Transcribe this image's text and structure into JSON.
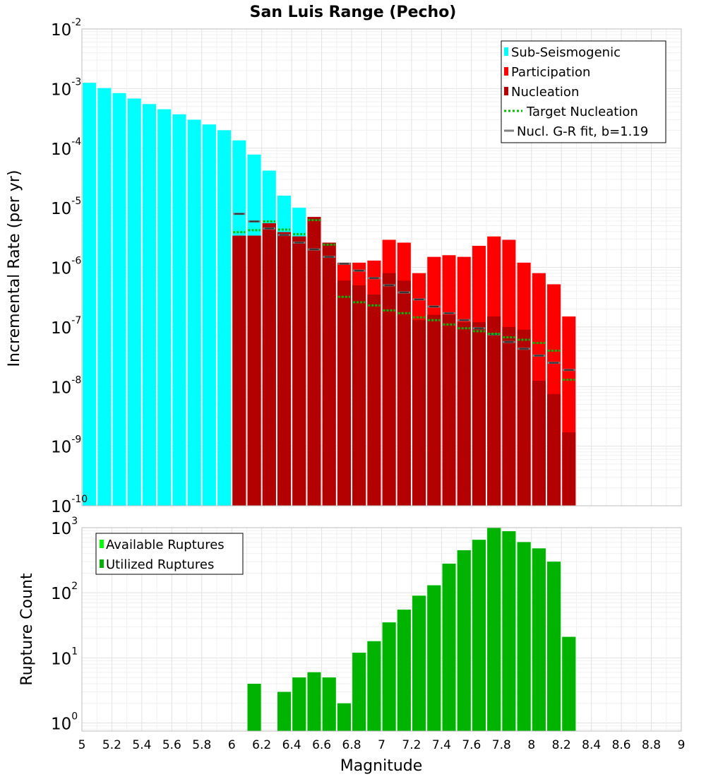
{
  "chart_data": [
    {
      "type": "bar",
      "title": "San Luis Range (Pecho)",
      "ylabel": "Incremental Rate (per yr)",
      "xlabel": "",
      "xlim": [
        5,
        9
      ],
      "ylim": [
        1e-10,
        0.01
      ],
      "yscale": "log",
      "grid": true,
      "legend_position": "top-right",
      "x": [
        5.05,
        5.15,
        5.25,
        5.35,
        5.45,
        5.55,
        5.65,
        5.75,
        5.85,
        5.95,
        6.05,
        6.15,
        6.25,
        6.35,
        6.45,
        6.55,
        6.65,
        6.75,
        6.85,
        6.95,
        7.05,
        7.15,
        7.25,
        7.35,
        7.45,
        7.55,
        7.65,
        7.75,
        7.85,
        7.95,
        8.05,
        8.15,
        8.25
      ],
      "y_ticks": [
        {
          "label": "10",
          "exp": "-10",
          "value": 1e-10
        },
        {
          "label": "10",
          "exp": "-9",
          "value": 1e-09
        },
        {
          "label": "10",
          "exp": "-8",
          "value": 1e-08
        },
        {
          "label": "10",
          "exp": "-7",
          "value": 1e-07
        },
        {
          "label": "10",
          "exp": "-6",
          "value": 1e-06
        },
        {
          "label": "10",
          "exp": "-5",
          "value": 1e-05
        },
        {
          "label": "10",
          "exp": "-4",
          "value": 0.0001
        },
        {
          "label": "10",
          "exp": "-3",
          "value": 0.001
        },
        {
          "label": "10",
          "exp": "-2",
          "value": 0.01
        }
      ],
      "series": [
        {
          "name": "Sub-Seismogenic",
          "kind": "bar",
          "color": "#00ffff",
          "values": [
            0.00125,
            0.00102,
            0.00084,
            0.00068,
            0.00055,
            0.00045,
            0.00037,
            0.0003,
            0.00025,
            0.0002,
            0.000135,
            7.8e-05,
            4.2e-05,
            1.6e-05,
            1e-05,
            null,
            null,
            null,
            null,
            null,
            null,
            null,
            null,
            null,
            null,
            null,
            null,
            null,
            null,
            null,
            null,
            null,
            null
          ]
        },
        {
          "name": "Participation",
          "kind": "bar",
          "color": "#ff0000",
          "values": [
            null,
            null,
            null,
            null,
            null,
            null,
            null,
            null,
            null,
            null,
            3.4e-06,
            3.4e-06,
            5.5e-06,
            3.9e-06,
            3.3e-06,
            7e-06,
            2.6e-06,
            1.2e-06,
            1.2e-06,
            1.3e-06,
            2.9e-06,
            2.6e-06,
            8e-07,
            1.5e-06,
            1.6e-06,
            1.5e-06,
            2.3e-06,
            3.3e-06,
            2.9e-06,
            1.2e-06,
            8e-07,
            5.2e-07,
            1.5e-07
          ]
        },
        {
          "name": "Nucleation",
          "kind": "bar",
          "color": "#b30000",
          "values": [
            null,
            null,
            null,
            null,
            null,
            null,
            null,
            null,
            null,
            null,
            3.4e-06,
            3.4e-06,
            5.5e-06,
            3.9e-06,
            3.3e-06,
            7e-06,
            2.6e-06,
            6e-07,
            5e-07,
            3.5e-07,
            8e-07,
            6e-07,
            1.3e-07,
            1.6e-07,
            1.6e-07,
            1.2e-07,
            1.2e-07,
            1.5e-07,
            1e-07,
            9e-08,
            1.25e-08,
            7.5e-09,
            1.7e-09
          ]
        },
        {
          "name": "Target Nucleation",
          "kind": "dotted-segment",
          "color": "#00bb00",
          "values": [
            null,
            null,
            null,
            null,
            null,
            null,
            null,
            null,
            null,
            null,
            3.9e-06,
            4.2e-06,
            5.9e-06,
            4.3e-06,
            3.6e-06,
            6.2e-06,
            2.4e-06,
            3.2e-07,
            2.6e-07,
            2.3e-07,
            1.9e-07,
            1.7e-07,
            1.45e-07,
            1.3e-07,
            1.1e-07,
            9.5e-08,
            8.5e-08,
            7.7e-08,
            6.7e-08,
            6.1e-08,
            5.4e-08,
            4e-08,
            1.3e-08
          ]
        },
        {
          "name": "Nucl. G-R fit, b=1.19",
          "kind": "segment",
          "color": "#808080",
          "values": [
            null,
            null,
            null,
            null,
            null,
            null,
            null,
            null,
            null,
            null,
            7.9e-06,
            5.9e-06,
            4.5e-06,
            3.5e-06,
            2.6e-06,
            2e-06,
            1.5e-06,
            1.15e-06,
            8.8e-07,
            6.6e-07,
            5e-07,
            3.8e-07,
            2.9e-07,
            2.2e-07,
            1.7e-07,
            1.3e-07,
            9.5e-08,
            7.5e-08,
            5.6e-08,
            4.3e-08,
            3.3e-08,
            2.5e-08,
            1.9e-08
          ]
        }
      ]
    },
    {
      "type": "bar",
      "title": "",
      "ylabel": "Rupture Count",
      "xlabel": "Magnitude",
      "xlim": [
        5,
        9
      ],
      "ylim": [
        0.75,
        1000
      ],
      "yscale": "log",
      "grid": true,
      "legend_position": "top-left",
      "x": [
        5.05,
        5.15,
        5.25,
        5.35,
        5.45,
        5.55,
        5.65,
        5.75,
        5.85,
        5.95,
        6.05,
        6.15,
        6.25,
        6.35,
        6.45,
        6.55,
        6.65,
        6.75,
        6.85,
        6.95,
        7.05,
        7.15,
        7.25,
        7.35,
        7.45,
        7.55,
        7.65,
        7.75,
        7.85,
        7.95,
        8.05,
        8.15,
        8.25
      ],
      "x_ticks": [
        "5",
        "5.2",
        "5.4",
        "5.6",
        "5.8",
        "6",
        "6.2",
        "6.4",
        "6.6",
        "6.8",
        "7",
        "7.2",
        "7.4",
        "7.6",
        "7.8",
        "8",
        "8.2",
        "8.4",
        "8.6",
        "8.8",
        "9"
      ],
      "y_ticks": [
        {
          "label": "10",
          "exp": "0",
          "value": 1
        },
        {
          "label": "10",
          "exp": "1",
          "value": 10
        },
        {
          "label": "10",
          "exp": "2",
          "value": 100
        },
        {
          "label": "10",
          "exp": "3",
          "value": 1000
        }
      ],
      "series": [
        {
          "name": "Available Ruptures",
          "kind": "bar",
          "color": "#00ff00",
          "values": [
            null,
            null,
            null,
            null,
            null,
            null,
            null,
            null,
            null,
            null,
            null,
            4,
            null,
            3,
            5,
            6,
            5,
            2,
            12,
            18,
            35,
            55,
            90,
            130,
            280,
            450,
            650,
            1000,
            880,
            600,
            480,
            300,
            21
          ]
        },
        {
          "name": "Utilized Ruptures",
          "kind": "bar",
          "color": "#00b300",
          "values": [
            null,
            null,
            null,
            null,
            null,
            null,
            null,
            null,
            null,
            null,
            null,
            4,
            null,
            3,
            5,
            6,
            5,
            2,
            12,
            18,
            35,
            55,
            90,
            130,
            280,
            450,
            650,
            1000,
            880,
            600,
            480,
            300,
            21
          ]
        }
      ]
    }
  ]
}
